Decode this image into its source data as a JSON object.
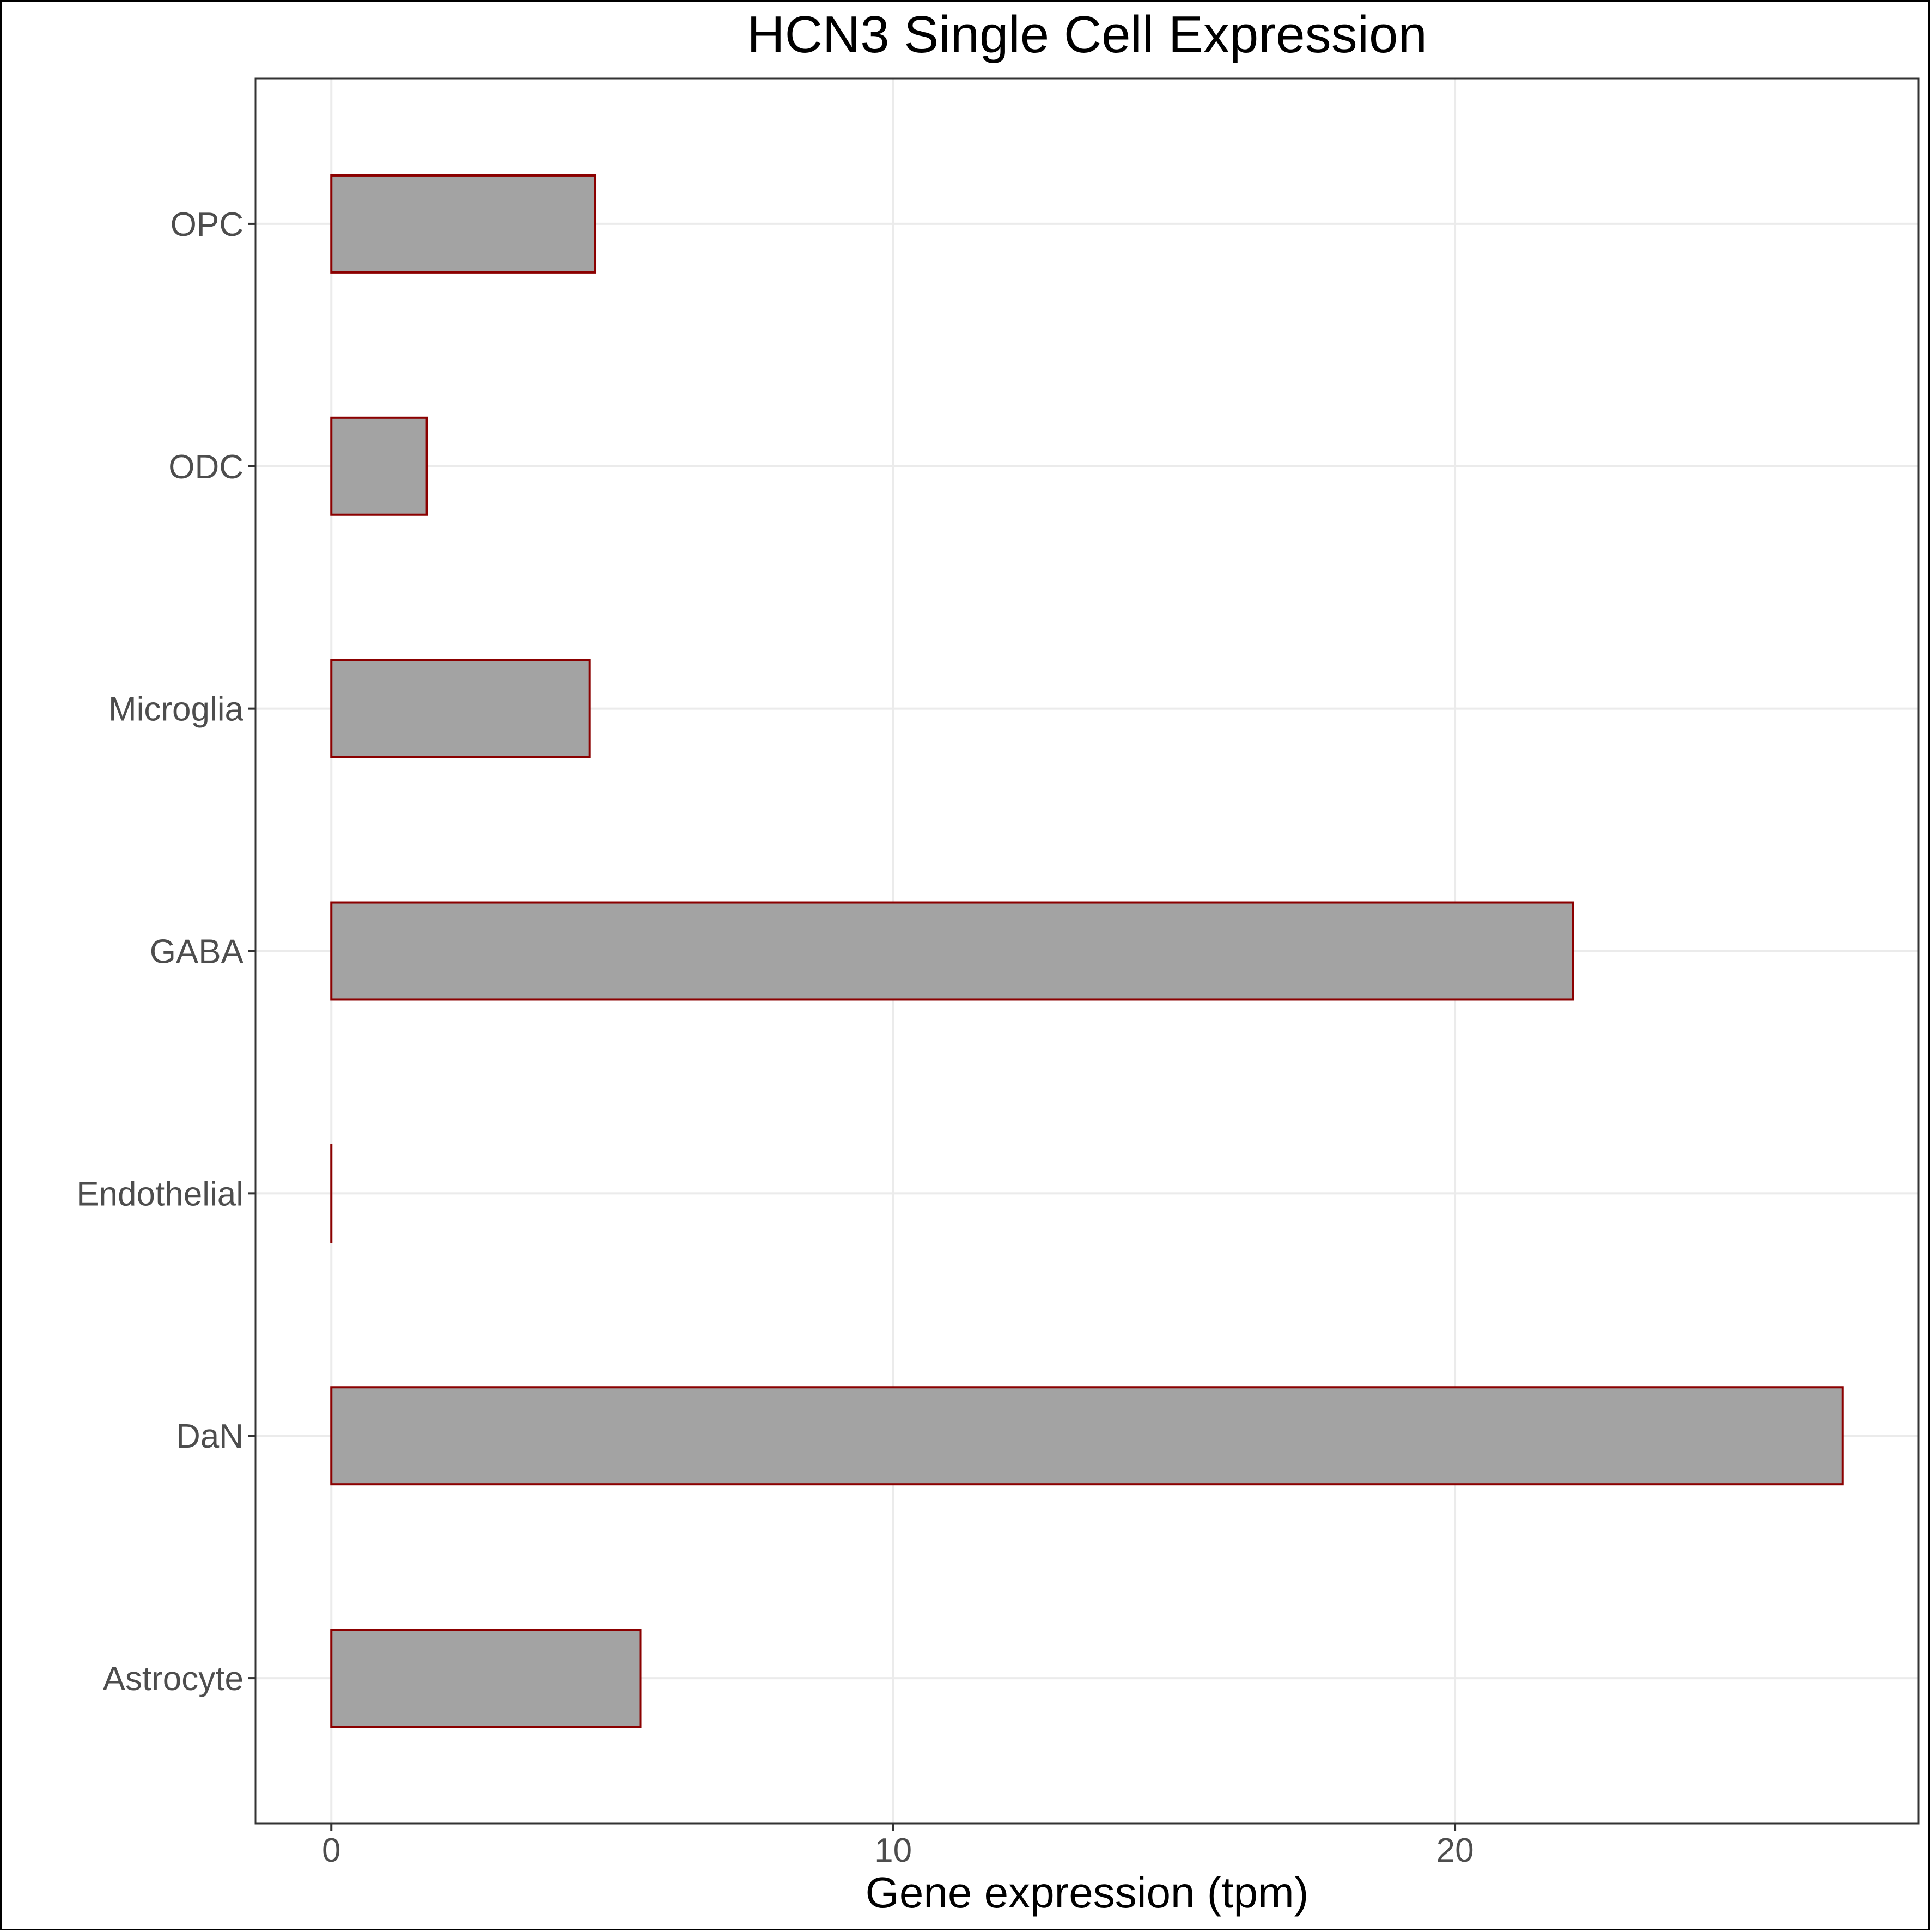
{
  "chart_data": {
    "type": "bar",
    "orientation": "horizontal",
    "title": "HCN3 Single Cell Expression",
    "xlabel": "Gene expression (tpm)",
    "ylabel": "",
    "categories": [
      "Astrocyte",
      "DaN",
      "Endothelial",
      "GABA",
      "Microglia",
      "ODC",
      "OPC"
    ],
    "values": [
      5.5,
      26.9,
      0.0,
      22.1,
      4.6,
      1.7,
      4.7
    ],
    "xlim": [
      -1.35,
      28.25
    ],
    "xticks": [
      0,
      10,
      20
    ],
    "xtick_labels": [
      "0",
      "10",
      "20"
    ],
    "grid": true,
    "legend": "none",
    "colors": {
      "bar_fill": "#a3a3a3",
      "bar_outline": "#8b0000",
      "grid": "#ebebeb",
      "panel_border": "#333333",
      "tick_label": "#4d4d4d"
    }
  }
}
